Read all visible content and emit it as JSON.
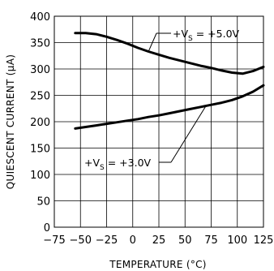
{
  "chart_data": {
    "type": "line",
    "title": "",
    "xlabel": "TEMPERATURE (°C)",
    "ylabel": "QUIESCENT CURRENT (μA)",
    "xlim": [
      -75,
      125
    ],
    "ylim": [
      0,
      400
    ],
    "xticks": [
      -75,
      -50,
      -25,
      0,
      25,
      50,
      75,
      100,
      125
    ],
    "yticks": [
      0,
      50,
      100,
      150,
      200,
      250,
      300,
      350,
      400
    ],
    "grid": true,
    "series": [
      {
        "name": "+V_S = +5.0V",
        "label_main": "+V",
        "label_sub": "S",
        "label_tail": " = +5.0V",
        "x": [
          -55,
          -45,
          -35,
          -25,
          -15,
          -5,
          5,
          15,
          25,
          35,
          45,
          55,
          65,
          75,
          85,
          95,
          105,
          115,
          125
        ],
        "y": [
          368,
          368,
          366,
          361,
          355,
          348,
          340,
          333,
          327,
          321,
          316,
          311,
          306,
          302,
          297,
          293,
          291,
          296,
          304
        ]
      },
      {
        "name": "+V_S = +3.0V",
        "label_main": "+V",
        "label_sub": "S",
        "label_tail": " = +3.0V",
        "x": [
          -55,
          -45,
          -35,
          -25,
          -15,
          -5,
          5,
          15,
          25,
          35,
          45,
          55,
          65,
          75,
          85,
          95,
          105,
          115,
          125
        ],
        "y": [
          187,
          190,
          193,
          196,
          199,
          202,
          205,
          209,
          212,
          216,
          220,
          224,
          228,
          232,
          236,
          241,
          248,
          257,
          269
        ]
      }
    ]
  }
}
